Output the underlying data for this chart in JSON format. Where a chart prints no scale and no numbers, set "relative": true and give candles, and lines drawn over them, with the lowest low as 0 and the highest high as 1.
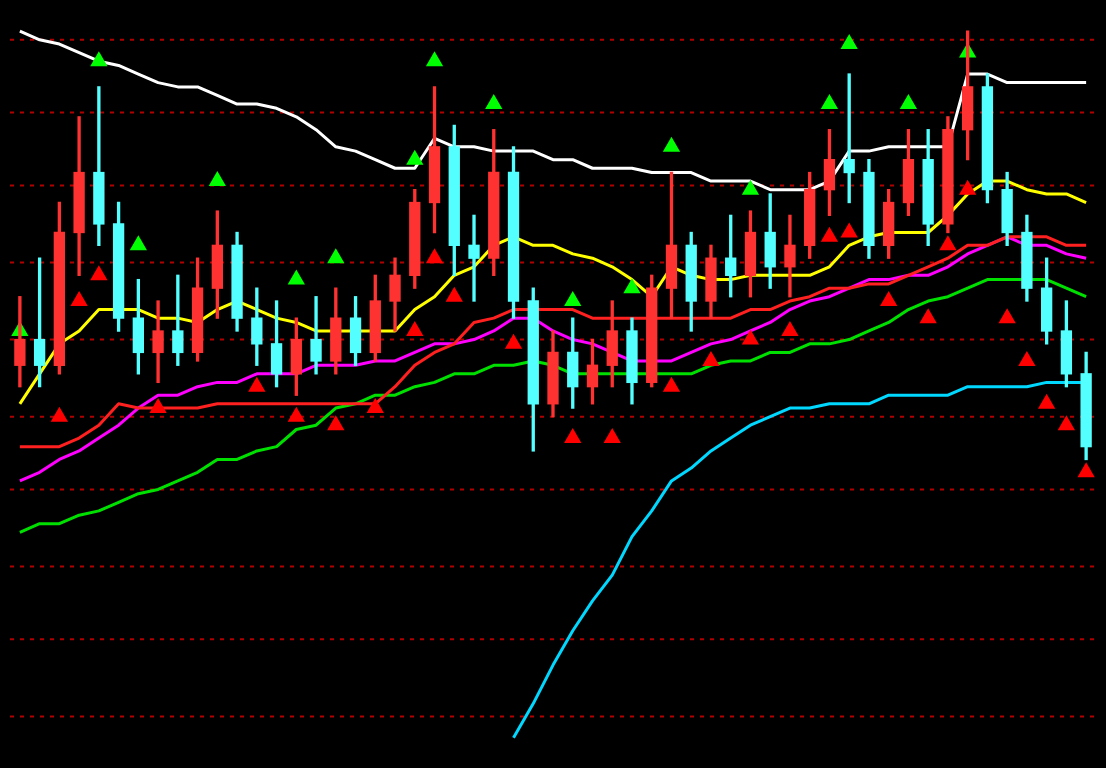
{
  "chart_data": {
    "type": "candlestick",
    "relative": true,
    "categories": [
      null,
      null,
      null,
      null,
      null,
      null,
      null,
      null,
      null,
      null,
      null,
      null,
      null,
      null,
      null,
      null,
      null,
      null,
      null,
      null,
      null,
      null,
      null,
      null,
      null,
      null,
      null,
      null,
      null,
      null,
      null,
      null,
      null,
      null,
      null,
      null,
      null,
      null,
      null,
      null,
      null,
      null,
      null,
      null,
      null,
      null,
      null,
      null,
      null,
      null,
      null,
      null,
      null,
      null,
      null
    ],
    "ohlc": [
      [
        0.22,
        0.38,
        0.17,
        0.28
      ],
      [
        0.28,
        0.47,
        0.17,
        0.22
      ],
      [
        0.22,
        0.6,
        0.2,
        0.53
      ],
      [
        0.53,
        0.8,
        0.43,
        0.67
      ],
      [
        0.67,
        0.87,
        0.5,
        0.55
      ],
      [
        0.55,
        0.6,
        0.3,
        0.33
      ],
      [
        0.33,
        0.42,
        0.2,
        0.25
      ],
      [
        0.25,
        0.37,
        0.18,
        0.3
      ],
      [
        0.3,
        0.43,
        0.22,
        0.25
      ],
      [
        0.25,
        0.47,
        0.23,
        0.4
      ],
      [
        0.4,
        0.58,
        0.33,
        0.5
      ],
      [
        0.5,
        0.53,
        0.3,
        0.33
      ],
      [
        0.33,
        0.4,
        0.22,
        0.27
      ],
      [
        0.27,
        0.37,
        0.17,
        0.2
      ],
      [
        0.2,
        0.33,
        0.15,
        0.28
      ],
      [
        0.28,
        0.38,
        0.2,
        0.23
      ],
      [
        0.23,
        0.4,
        0.2,
        0.33
      ],
      [
        0.33,
        0.38,
        0.22,
        0.25
      ],
      [
        0.25,
        0.43,
        0.23,
        0.37
      ],
      [
        0.37,
        0.47,
        0.3,
        0.43
      ],
      [
        0.43,
        0.63,
        0.4,
        0.6
      ],
      [
        0.6,
        0.87,
        0.53,
        0.73
      ],
      [
        0.73,
        0.78,
        0.43,
        0.5
      ],
      [
        0.5,
        0.57,
        0.37,
        0.47
      ],
      [
        0.47,
        0.77,
        0.43,
        0.67
      ],
      [
        0.67,
        0.73,
        0.33,
        0.37
      ],
      [
        0.37,
        0.4,
        0.02,
        0.13
      ],
      [
        0.13,
        0.3,
        0.1,
        0.25
      ],
      [
        0.25,
        0.33,
        0.12,
        0.17
      ],
      [
        0.17,
        0.28,
        0.13,
        0.22
      ],
      [
        0.22,
        0.37,
        0.17,
        0.3
      ],
      [
        0.3,
        0.33,
        0.13,
        0.18
      ],
      [
        0.18,
        0.43,
        0.17,
        0.4
      ],
      [
        0.4,
        0.67,
        0.33,
        0.5
      ],
      [
        0.5,
        0.53,
        0.3,
        0.37
      ],
      [
        0.37,
        0.5,
        0.33,
        0.47
      ],
      [
        0.47,
        0.57,
        0.38,
        0.43
      ],
      [
        0.43,
        0.58,
        0.38,
        0.53
      ],
      [
        0.53,
        0.62,
        0.4,
        0.45
      ],
      [
        0.45,
        0.57,
        0.38,
        0.5
      ],
      [
        0.5,
        0.67,
        0.47,
        0.63
      ],
      [
        0.63,
        0.77,
        0.57,
        0.7
      ],
      [
        0.7,
        0.9,
        0.6,
        0.67
      ],
      [
        0.67,
        0.7,
        0.47,
        0.5
      ],
      [
        0.5,
        0.63,
        0.47,
        0.6
      ],
      [
        0.6,
        0.77,
        0.57,
        0.7
      ],
      [
        0.7,
        0.77,
        0.5,
        0.55
      ],
      [
        0.55,
        0.8,
        0.53,
        0.77
      ],
      [
        0.77,
        1,
        0.7,
        0.87
      ],
      [
        0.87,
        0.9,
        0.6,
        0.63
      ],
      [
        0.63,
        0.67,
        0.5,
        0.53
      ],
      [
        0.53,
        0.57,
        0.37,
        0.4
      ],
      [
        0.4,
        0.47,
        0.27,
        0.3
      ],
      [
        0.3,
        0.37,
        0.17,
        0.2
      ],
      [
        0.2,
        0.25,
        0,
        0.03
      ]
    ],
    "colors": [
      "#ff3232",
      "#54ffff",
      "#ff3232",
      "#ff3232",
      "#54ffff",
      "#54ffff",
      "#54ffff",
      "#ff3232",
      "#54ffff",
      "#ff3232",
      "#ff3232",
      "#54ffff",
      "#54ffff",
      "#54ffff",
      "#ff3232",
      "#54ffff",
      "#ff3232",
      "#54ffff",
      "#ff3232",
      "#ff3232",
      "#ff3232",
      "#ff3232",
      "#54ffff",
      "#54ffff",
      "#ff3232",
      "#54ffff",
      "#54ffff",
      "#ff3232",
      "#54ffff",
      "#ff3232",
      "#ff3232",
      "#54ffff",
      "#ff3232",
      "#ff3232",
      "#54ffff",
      "#ff3232",
      "#54ffff",
      "#ff3232",
      "#54ffff",
      "#ff3232",
      "#ff3232",
      "#ff3232",
      "#54ffff",
      "#54ffff",
      "#ff3232",
      "#ff3232",
      "#54ffff",
      "#ff3232",
      "#ff3232",
      "#54ffff",
      "#54ffff",
      "#54ffff",
      "#54ffff",
      "#54ffff",
      "#54ffff"
    ],
    "ref_lines": [
      {
        "axis": "y",
        "value": 0.98,
        "color": "#b00000",
        "line_style": "dotted"
      },
      {
        "axis": "y",
        "value": 0.81,
        "color": "#b00000",
        "line_style": "dotted"
      },
      {
        "axis": "y",
        "value": 0.64,
        "color": "#b00000",
        "line_style": "dotted"
      },
      {
        "axis": "y",
        "value": 0.46,
        "color": "#b00000",
        "line_style": "dotted"
      },
      {
        "axis": "y",
        "value": 0.28,
        "color": "#b00000",
        "line_style": "dotted"
      },
      {
        "axis": "y",
        "value": 0.1,
        "color": "#b00000",
        "line_style": "dotted"
      },
      {
        "axis": "y",
        "value": -0.07,
        "color": "#b00000",
        "line_style": "dotted"
      },
      {
        "axis": "y",
        "value": -0.25,
        "color": "#b00000",
        "line_style": "dotted"
      },
      {
        "axis": "y",
        "value": -0.42,
        "color": "#b00000",
        "line_style": "dotted"
      },
      {
        "axis": "y",
        "value": -0.6,
        "color": "#b00000",
        "line_style": "dotted"
      }
    ],
    "series": [
      {
        "type": "line",
        "color": "#ffffff",
        "values": [
          1,
          0.98,
          0.97,
          0.95,
          0.93,
          0.92,
          0.9,
          0.88,
          0.87,
          0.87,
          0.85,
          0.83,
          0.83,
          0.82,
          0.8,
          0.77,
          0.73,
          0.72,
          0.7,
          0.68,
          0.68,
          0.75,
          0.73,
          0.73,
          0.72,
          0.72,
          0.72,
          0.7,
          0.7,
          0.68,
          0.68,
          0.68,
          0.67,
          0.67,
          0.67,
          0.65,
          0.65,
          0.65,
          0.63,
          0.63,
          0.63,
          0.65,
          0.72,
          0.72,
          0.73,
          0.73,
          0.73,
          0.73,
          0.9,
          0.9,
          0.88,
          0.88,
          0.88,
          0.88,
          0.88
        ]
      },
      {
        "type": "line",
        "color": "#ffff00",
        "values": [
          0.13,
          0.2,
          0.27,
          0.3,
          0.35,
          0.35,
          0.35,
          0.33,
          0.33,
          0.32,
          0.35,
          0.37,
          0.35,
          0.33,
          0.32,
          0.3,
          0.3,
          0.3,
          0.3,
          0.3,
          0.35,
          0.38,
          0.43,
          0.45,
          0.5,
          0.52,
          0.5,
          0.5,
          0.48,
          0.47,
          0.45,
          0.42,
          0.38,
          0.45,
          0.43,
          0.42,
          0.42,
          0.43,
          0.43,
          0.43,
          0.43,
          0.45,
          0.5,
          0.52,
          0.53,
          0.53,
          0.53,
          0.57,
          0.62,
          0.65,
          0.65,
          0.63,
          0.62,
          0.62,
          0.6
        ]
      },
      {
        "type": "line",
        "color": "#ff2020",
        "values": [
          0.03,
          0.03,
          0.03,
          0.05,
          0.08,
          0.13,
          0.12,
          0.12,
          0.12,
          0.12,
          0.13,
          0.13,
          0.13,
          0.13,
          0.13,
          0.13,
          0.13,
          0.13,
          0.13,
          0.17,
          0.22,
          0.25,
          0.27,
          0.32,
          0.33,
          0.35,
          0.35,
          0.35,
          0.35,
          0.33,
          0.33,
          0.33,
          0.33,
          0.33,
          0.33,
          0.33,
          0.33,
          0.35,
          0.35,
          0.37,
          0.38,
          0.4,
          0.4,
          0.41,
          0.41,
          0.43,
          0.45,
          0.47,
          0.5,
          0.5,
          0.52,
          0.52,
          0.52,
          0.5,
          0.5
        ]
      },
      {
        "type": "line",
        "color": "#ff00ff",
        "values": [
          -0.05,
          -0.03,
          0,
          0.02,
          0.05,
          0.08,
          0.12,
          0.15,
          0.15,
          0.17,
          0.18,
          0.18,
          0.2,
          0.2,
          0.2,
          0.22,
          0.22,
          0.22,
          0.23,
          0.23,
          0.25,
          0.27,
          0.27,
          0.28,
          0.3,
          0.33,
          0.33,
          0.3,
          0.28,
          0.27,
          0.25,
          0.23,
          0.23,
          0.23,
          0.25,
          0.27,
          0.28,
          0.3,
          0.32,
          0.35,
          0.37,
          0.38,
          0.4,
          0.42,
          0.42,
          0.43,
          0.43,
          0.45,
          0.48,
          0.5,
          0.52,
          0.5,
          0.5,
          0.48,
          0.47
        ]
      },
      {
        "type": "line",
        "color": "#00e000",
        "values": [
          -0.17,
          -0.15,
          -0.15,
          -0.13,
          -0.12,
          -0.1,
          -0.08,
          -0.07,
          -0.05,
          -0.03,
          0,
          0,
          0.02,
          0.03,
          0.07,
          0.08,
          0.12,
          0.13,
          0.15,
          0.15,
          0.17,
          0.18,
          0.2,
          0.2,
          0.22,
          0.22,
          0.23,
          0.22,
          0.2,
          0.2,
          0.2,
          0.2,
          0.2,
          0.2,
          0.2,
          0.22,
          0.23,
          0.23,
          0.25,
          0.25,
          0.27,
          0.27,
          0.28,
          0.3,
          0.32,
          0.35,
          0.37,
          0.38,
          0.4,
          0.42,
          0.42,
          0.42,
          0.42,
          0.4,
          0.38
        ]
      },
      {
        "type": "line",
        "color": "#00d8ff",
        "values": [
          null,
          null,
          null,
          null,
          null,
          null,
          null,
          null,
          null,
          null,
          null,
          null,
          null,
          null,
          null,
          null,
          null,
          null,
          null,
          null,
          null,
          null,
          null,
          null,
          null,
          -0.65,
          -0.57,
          -0.48,
          -0.4,
          -0.33,
          -0.27,
          -0.18,
          -0.12,
          -0.05,
          -0.02,
          0.02,
          0.05,
          0.08,
          0.1,
          0.12,
          0.12,
          0.13,
          0.13,
          0.13,
          0.15,
          0.15,
          0.15,
          0.15,
          0.17,
          0.17,
          0.17,
          0.17,
          0.18,
          0.18,
          0.18
        ]
      },
      {
        "type": "scatter",
        "marker": "triangle",
        "color": "#00ff00",
        "values": [
          0.3,
          null,
          null,
          null,
          0.93,
          null,
          0.5,
          null,
          null,
          null,
          0.65,
          null,
          null,
          null,
          0.42,
          null,
          0.47,
          null,
          null,
          null,
          0.7,
          0.93,
          null,
          null,
          0.83,
          null,
          null,
          null,
          0.37,
          null,
          null,
          0.4,
          null,
          0.73,
          null,
          null,
          null,
          0.63,
          null,
          null,
          null,
          0.83,
          0.97,
          null,
          null,
          0.83,
          null,
          null,
          0.95,
          null,
          null,
          null,
          null,
          null,
          null
        ]
      },
      {
        "type": "scatter",
        "marker": "triangle",
        "color": "#ff0000",
        "values": [
          null,
          null,
          0.1,
          0.37,
          0.43,
          null,
          null,
          0.12,
          null,
          null,
          null,
          null,
          0.17,
          null,
          0.1,
          null,
          0.08,
          null,
          0.12,
          null,
          0.3,
          0.47,
          0.38,
          null,
          null,
          0.27,
          null,
          null,
          0.05,
          null,
          0.05,
          null,
          null,
          0.17,
          null,
          0.23,
          null,
          0.28,
          null,
          0.3,
          null,
          0.52,
          0.53,
          null,
          0.37,
          null,
          0.33,
          0.5,
          0.63,
          null,
          0.33,
          0.23,
          0.13,
          0.08,
          -0.03
        ]
      }
    ]
  }
}
